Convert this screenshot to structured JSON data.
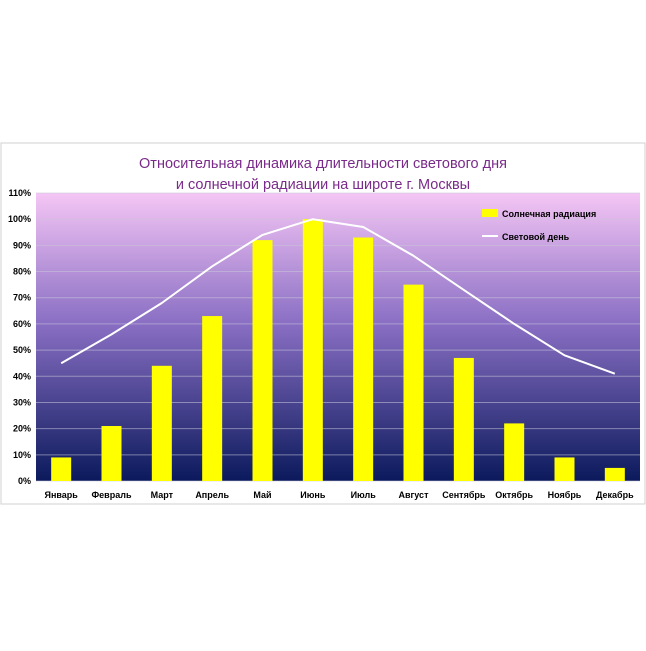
{
  "chart_data": {
    "type": "bar",
    "title_line1": "Относительная динамика длительности светового дня",
    "title_line2": "и солнечной радиации на широте г. Москвы",
    "xlabel": "",
    "ylabel": "",
    "ylim": [
      0,
      110
    ],
    "y_ticks": [
      "0%",
      "10%",
      "20%",
      "30%",
      "40%",
      "50%",
      "60%",
      "70%",
      "80%",
      "90%",
      "100%",
      "110%"
    ],
    "grid": true,
    "legend_position": "top-right",
    "categories": [
      "Январь",
      "Февраль",
      "Март",
      "Апрель",
      "Май",
      "Июнь",
      "Июль",
      "Август",
      "Сентябрь",
      "Октябрь",
      "Ноябрь",
      "Декабрь"
    ],
    "series": [
      {
        "name": "Солнечная радиация",
        "type": "bar",
        "color": "#ffff00",
        "values": [
          9,
          21,
          44,
          63,
          92,
          100,
          93,
          75,
          47,
          22,
          9,
          5
        ]
      },
      {
        "name": "Световой день",
        "type": "line",
        "color": "#ffffff",
        "values": [
          45,
          56,
          68,
          82,
          94,
          100,
          97,
          86,
          73,
          60,
          48,
          41
        ]
      }
    ],
    "colors": {
      "plot_top": "#f5c6f5",
      "plot_mid": "#8a6fc4",
      "plot_bottom": "#0b1a5c",
      "title": "#7a2a8a",
      "gridline": "#c9c9d9"
    }
  }
}
